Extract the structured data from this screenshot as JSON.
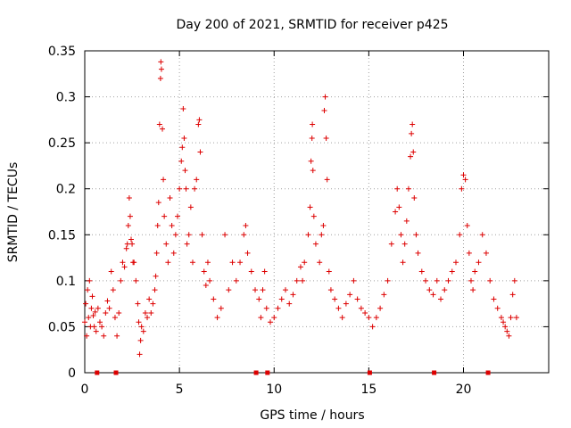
{
  "chart_data": {
    "type": "scatter",
    "title": "Day 200 of 2021, SRMTID for receiver p425",
    "xlabel": "GPS time / hours",
    "ylabel": "SRMTID / TECUs",
    "xlim": [
      0,
      24.5
    ],
    "ylim": [
      0,
      0.35
    ],
    "xticks": [
      0,
      5,
      10,
      15,
      20
    ],
    "xtick_labels": [
      "0",
      "5",
      "10",
      "15",
      "20"
    ],
    "yticks": [
      0,
      0.05,
      0.1,
      0.15,
      0.2,
      0.25,
      0.3,
      0.35
    ],
    "ytick_labels": [
      "0",
      "0.05",
      "0.1",
      "0.15",
      "0.2",
      "0.25",
      "0.3",
      "0.35"
    ],
    "grid": true,
    "marker": "+",
    "color": "#dd0000",
    "zero_markers_x": [
      0.65,
      1.65,
      9.05,
      9.65,
      15.05,
      18.45,
      21.3
    ],
    "series": [
      {
        "name": "SRMTID",
        "points": [
          [
            0.0,
            0.055
          ],
          [
            0.05,
            0.075
          ],
          [
            0.1,
            0.04
          ],
          [
            0.15,
            0.09
          ],
          [
            0.2,
            0.06
          ],
          [
            0.25,
            0.1
          ],
          [
            0.3,
            0.05
          ],
          [
            0.35,
            0.07
          ],
          [
            0.4,
            0.083
          ],
          [
            0.45,
            0.062
          ],
          [
            0.5,
            0.05
          ],
          [
            0.55,
            0.066
          ],
          [
            0.6,
            0.045
          ],
          [
            0.7,
            0.07
          ],
          [
            0.8,
            0.055
          ],
          [
            0.9,
            0.05
          ],
          [
            1.0,
            0.04
          ],
          [
            1.1,
            0.065
          ],
          [
            1.2,
            0.078
          ],
          [
            1.3,
            0.07
          ],
          [
            1.4,
            0.11
          ],
          [
            1.5,
            0.09
          ],
          [
            1.6,
            0.06
          ],
          [
            1.7,
            0.04
          ],
          [
            1.8,
            0.065
          ],
          [
            1.9,
            0.1
          ],
          [
            2.0,
            0.12
          ],
          [
            2.1,
            0.115
          ],
          [
            2.2,
            0.135
          ],
          [
            2.25,
            0.14
          ],
          [
            2.3,
            0.16
          ],
          [
            2.35,
            0.19
          ],
          [
            2.4,
            0.17
          ],
          [
            2.45,
            0.145
          ],
          [
            2.5,
            0.14
          ],
          [
            2.55,
            0.12
          ],
          [
            2.6,
            0.12
          ],
          [
            2.7,
            0.1
          ],
          [
            2.8,
            0.075
          ],
          [
            2.85,
            0.055
          ],
          [
            2.9,
            0.02
          ],
          [
            2.95,
            0.035
          ],
          [
            3.0,
            0.05
          ],
          [
            3.1,
            0.045
          ],
          [
            3.2,
            0.065
          ],
          [
            3.3,
            0.06
          ],
          [
            3.4,
            0.08
          ],
          [
            3.5,
            0.065
          ],
          [
            3.6,
            0.075
          ],
          [
            3.7,
            0.09
          ],
          [
            3.75,
            0.105
          ],
          [
            3.8,
            0.13
          ],
          [
            3.85,
            0.16
          ],
          [
            3.9,
            0.185
          ],
          [
            3.95,
            0.27
          ],
          [
            4.0,
            0.32
          ],
          [
            4.02,
            0.338
          ],
          [
            4.05,
            0.33
          ],
          [
            4.1,
            0.265
          ],
          [
            4.15,
            0.21
          ],
          [
            4.2,
            0.17
          ],
          [
            4.3,
            0.14
          ],
          [
            4.4,
            0.12
          ],
          [
            4.5,
            0.19
          ],
          [
            4.6,
            0.16
          ],
          [
            4.7,
            0.13
          ],
          [
            4.8,
            0.15
          ],
          [
            4.9,
            0.17
          ],
          [
            5.0,
            0.2
          ],
          [
            5.1,
            0.23
          ],
          [
            5.15,
            0.245
          ],
          [
            5.2,
            0.287
          ],
          [
            5.25,
            0.255
          ],
          [
            5.3,
            0.22
          ],
          [
            5.35,
            0.2
          ],
          [
            5.4,
            0.14
          ],
          [
            5.5,
            0.15
          ],
          [
            5.6,
            0.18
          ],
          [
            5.7,
            0.12
          ],
          [
            5.8,
            0.2
          ],
          [
            5.9,
            0.21
          ],
          [
            6.0,
            0.27
          ],
          [
            6.05,
            0.275
          ],
          [
            6.1,
            0.24
          ],
          [
            6.2,
            0.15
          ],
          [
            6.3,
            0.11
          ],
          [
            6.4,
            0.095
          ],
          [
            6.5,
            0.12
          ],
          [
            6.6,
            0.1
          ],
          [
            6.8,
            0.08
          ],
          [
            7.0,
            0.06
          ],
          [
            7.2,
            0.07
          ],
          [
            7.4,
            0.15
          ],
          [
            7.6,
            0.09
          ],
          [
            7.8,
            0.12
          ],
          [
            8.0,
            0.1
          ],
          [
            8.2,
            0.12
          ],
          [
            8.4,
            0.15
          ],
          [
            8.5,
            0.16
          ],
          [
            8.6,
            0.13
          ],
          [
            8.8,
            0.11
          ],
          [
            9.0,
            0.09
          ],
          [
            9.2,
            0.08
          ],
          [
            9.3,
            0.06
          ],
          [
            9.4,
            0.09
          ],
          [
            9.5,
            0.11
          ],
          [
            9.6,
            0.07
          ],
          [
            9.8,
            0.055
          ],
          [
            10.0,
            0.06
          ],
          [
            10.2,
            0.07
          ],
          [
            10.4,
            0.08
          ],
          [
            10.6,
            0.09
          ],
          [
            10.8,
            0.075
          ],
          [
            11.0,
            0.085
          ],
          [
            11.2,
            0.1
          ],
          [
            11.4,
            0.115
          ],
          [
            11.5,
            0.1
          ],
          [
            11.6,
            0.12
          ],
          [
            11.8,
            0.15
          ],
          [
            11.9,
            0.18
          ],
          [
            11.95,
            0.23
          ],
          [
            12.0,
            0.255
          ],
          [
            12.02,
            0.27
          ],
          [
            12.05,
            0.22
          ],
          [
            12.1,
            0.17
          ],
          [
            12.2,
            0.14
          ],
          [
            12.4,
            0.12
          ],
          [
            12.5,
            0.15
          ],
          [
            12.6,
            0.16
          ],
          [
            12.65,
            0.285
          ],
          [
            12.7,
            0.3
          ],
          [
            12.75,
            0.255
          ],
          [
            12.8,
            0.21
          ],
          [
            12.9,
            0.11
          ],
          [
            13.0,
            0.09
          ],
          [
            13.2,
            0.08
          ],
          [
            13.4,
            0.07
          ],
          [
            13.6,
            0.06
          ],
          [
            13.8,
            0.075
          ],
          [
            14.0,
            0.085
          ],
          [
            14.2,
            0.1
          ],
          [
            14.4,
            0.08
          ],
          [
            14.6,
            0.07
          ],
          [
            14.8,
            0.065
          ],
          [
            15.0,
            0.06
          ],
          [
            15.2,
            0.05
          ],
          [
            15.4,
            0.06
          ],
          [
            15.6,
            0.07
          ],
          [
            15.8,
            0.085
          ],
          [
            16.0,
            0.1
          ],
          [
            16.2,
            0.14
          ],
          [
            16.4,
            0.175
          ],
          [
            16.5,
            0.2
          ],
          [
            16.6,
            0.18
          ],
          [
            16.7,
            0.15
          ],
          [
            16.8,
            0.12
          ],
          [
            16.9,
            0.14
          ],
          [
            17.0,
            0.165
          ],
          [
            17.1,
            0.2
          ],
          [
            17.2,
            0.235
          ],
          [
            17.25,
            0.26
          ],
          [
            17.3,
            0.27
          ],
          [
            17.35,
            0.24
          ],
          [
            17.4,
            0.19
          ],
          [
            17.5,
            0.15
          ],
          [
            17.6,
            0.13
          ],
          [
            17.8,
            0.11
          ],
          [
            18.0,
            0.1
          ],
          [
            18.2,
            0.09
          ],
          [
            18.4,
            0.085
          ],
          [
            18.6,
            0.1
          ],
          [
            18.8,
            0.08
          ],
          [
            19.0,
            0.09
          ],
          [
            19.2,
            0.1
          ],
          [
            19.4,
            0.11
          ],
          [
            19.6,
            0.12
          ],
          [
            19.8,
            0.15
          ],
          [
            19.9,
            0.2
          ],
          [
            20.0,
            0.215
          ],
          [
            20.1,
            0.21
          ],
          [
            20.2,
            0.16
          ],
          [
            20.3,
            0.13
          ],
          [
            20.4,
            0.1
          ],
          [
            20.5,
            0.09
          ],
          [
            20.6,
            0.11
          ],
          [
            20.8,
            0.12
          ],
          [
            21.0,
            0.15
          ],
          [
            21.2,
            0.13
          ],
          [
            21.4,
            0.1
          ],
          [
            21.6,
            0.08
          ],
          [
            21.8,
            0.07
          ],
          [
            22.0,
            0.06
          ],
          [
            22.1,
            0.055
          ],
          [
            22.2,
            0.05
          ],
          [
            22.3,
            0.045
          ],
          [
            22.4,
            0.04
          ],
          [
            22.5,
            0.06
          ],
          [
            22.6,
            0.085
          ],
          [
            22.7,
            0.1
          ],
          [
            22.8,
            0.06
          ]
        ]
      }
    ]
  }
}
